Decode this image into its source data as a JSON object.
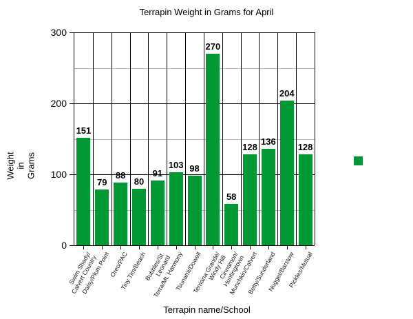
{
  "chart_data": {
    "type": "bar",
    "title": "Terrapin Weight in Grams for April",
    "xlabel": "Terrapin name/School",
    "ylabel": "Weight\nin\nGrams",
    "ylim": [
      0,
      300
    ],
    "yticks": [
      0,
      100,
      200,
      300
    ],
    "minor_gridlines": [
      50,
      150,
      250
    ],
    "grid": true,
    "legend_position": "right",
    "categories": [
      "Swim Shady/\nCalvert Country",
      "Daisy/Plum Point",
      "Oreo/PAC",
      "Tiny Tim/Beach",
      "Bubbles/St.\nLeonard",
      "Terra/Mt. Harmony",
      "Tsunami/Dowell",
      "Terriana Grande/\nWindy Hill",
      "Cinnamon/\nHuntingtown",
      "Munchkin/Calvert",
      "Betty/Sunderland",
      "Nugget/Barstow",
      "Pickles/Mutual"
    ],
    "series": [
      {
        "name": "",
        "color": "#009933",
        "values": [
          151,
          79,
          88,
          80,
          91,
          103,
          98,
          270,
          58,
          128,
          136,
          204,
          128
        ]
      }
    ]
  },
  "ytick_labels": [
    "0",
    "100",
    "200",
    "300"
  ],
  "ylabel_lines": [
    "Weight",
    "in",
    "Grams"
  ],
  "colors": {
    "bar": "#009933",
    "major_grid": "#000000",
    "minor_grid": "#b8b8b8"
  }
}
